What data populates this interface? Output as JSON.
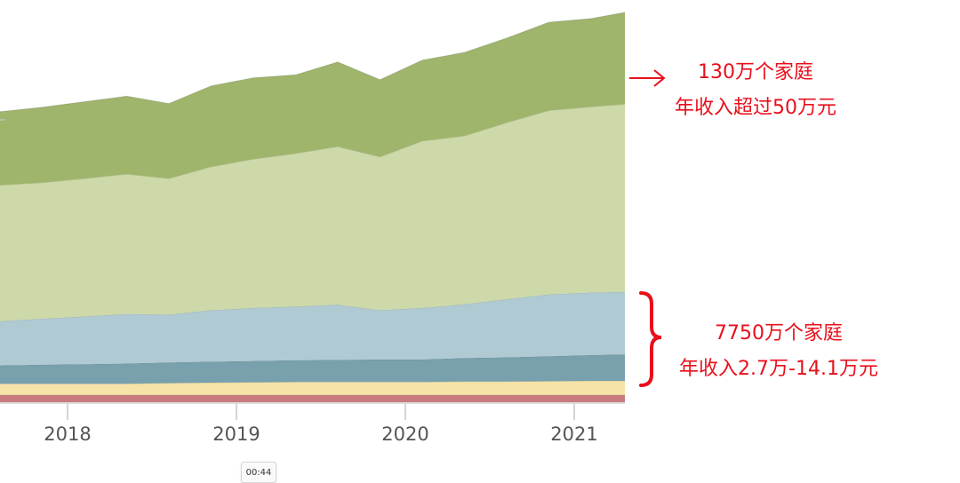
{
  "chart_data": {
    "type": "area",
    "stacked": true,
    "x": [
      2017.6,
      2017.85,
      2018.1,
      2018.35,
      2018.6,
      2018.85,
      2019.1,
      2019.35,
      2019.6,
      2019.85,
      2020.1,
      2020.35,
      2020.6,
      2020.85,
      2021.1,
      2021.3
    ],
    "x_ticks": [
      "2018",
      "2019",
      "2020",
      "2021"
    ],
    "xlim": [
      2017.6,
      2021.3
    ],
    "ylim": [
      0,
      105
    ],
    "grid": false,
    "series": [
      {
        "color": "#c97a7d",
        "values": [
          2,
          2,
          2,
          2,
          2,
          2,
          2,
          2,
          2,
          2,
          2,
          2,
          2,
          2,
          2,
          2
        ]
      },
      {
        "color": "#f5e3a8",
        "values": [
          3,
          3,
          3,
          3,
          3.2,
          3.3,
          3.4,
          3.5,
          3.5,
          3.5,
          3.5,
          3.6,
          3.6,
          3.7,
          3.8,
          3.8
        ]
      },
      {
        "color": "#78a1ad",
        "values": [
          5,
          5.2,
          5.3,
          5.5,
          5.6,
          5.7,
          5.8,
          5.9,
          6,
          6.1,
          6.1,
          6.4,
          6.6,
          6.8,
          7,
          7.2
        ]
      },
      {
        "color": "#b0cad4",
        "values": [
          12,
          12.5,
          13,
          13.5,
          13,
          14,
          14.4,
          14.6,
          15,
          13.4,
          14,
          14.6,
          15.8,
          16.8,
          17,
          17
        ]
      },
      {
        "color": "#cdd9a8",
        "values": [
          37,
          37,
          37.5,
          38,
          37,
          39,
          40.5,
          41.6,
          43,
          41.7,
          45.4,
          45.8,
          48,
          50,
          50.5,
          51
        ]
      },
      {
        "color": "#9fb56c",
        "values": [
          20,
          20.5,
          20.9,
          21.2,
          20.4,
          22,
          22.1,
          21.4,
          23,
          21,
          22,
          22.7,
          23,
          24,
          24,
          25
        ]
      }
    ]
  },
  "annotations": {
    "top_line1": "130万个家庭",
    "top_line2": "年收入超过50万元",
    "bottom_line1": "7750万个家庭",
    "bottom_line2": "年收入2.7万-14.1万元"
  },
  "timestamp": "00:44"
}
